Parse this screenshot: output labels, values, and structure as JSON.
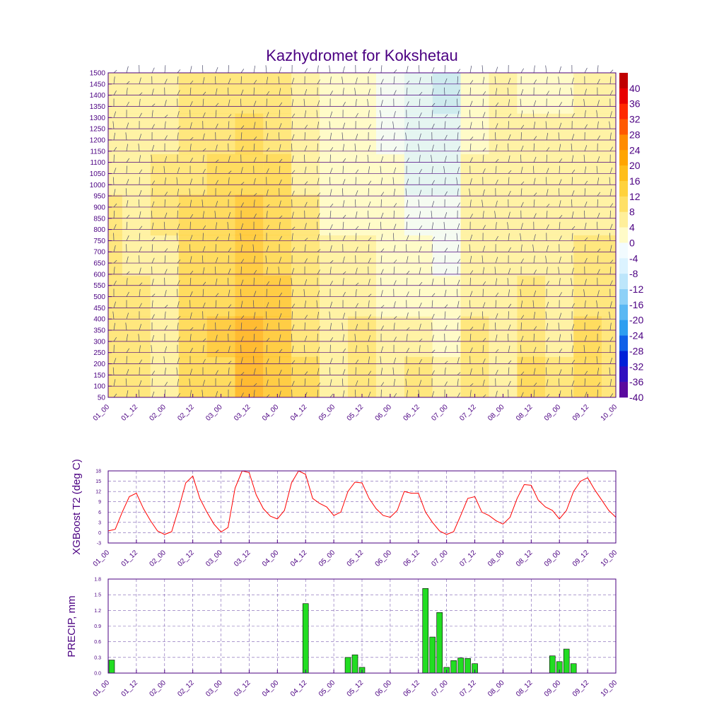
{
  "chart_data": [
    {
      "type": "heatmap",
      "title": "Kazhydromet for Kokshetau",
      "xlabel": "",
      "ylabel": "",
      "x_tick_labels": [
        "01_00",
        "01_12",
        "02_00",
        "02_12",
        "03_00",
        "03_12",
        "04_00",
        "04_12",
        "05_00",
        "05_12",
        "06_00",
        "06_12",
        "07_00",
        "07_12",
        "08_00",
        "08_12",
        "09_00",
        "09_12",
        "10_00"
      ],
      "y_tick_labels": [
        "1500",
        "1450",
        "1400",
        "1350",
        "1300",
        "1250",
        "1200",
        "1150",
        "1100",
        "1050",
        "1000",
        "950",
        "900",
        "850",
        "800",
        "750",
        "700",
        "650",
        "600",
        "550",
        "500",
        "450",
        "400",
        "350",
        "300",
        "250",
        "200",
        "150",
        "100",
        "50"
      ],
      "ylim": [
        50,
        1500
      ],
      "colorbar": {
        "labels": [
          "40",
          "36",
          "32",
          "28",
          "24",
          "20",
          "16",
          "12",
          "8",
          "4",
          "0",
          "-4",
          "-8",
          "-12",
          "-16",
          "-20",
          "-24",
          "-28",
          "-32",
          "-36",
          "-40"
        ],
        "colors": [
          "#c00000",
          "#e80000",
          "#ff2a00",
          "#ff5a00",
          "#ff8c00",
          "#ffa500",
          "#ffbe1a",
          "#ffd23c",
          "#ffe066",
          "#ffef9a",
          "#fffbc8",
          "#f2fbff",
          "#dcf3ff",
          "#bde6fb",
          "#8ed1f7",
          "#5ab8f3",
          "#2e9ef0",
          "#1060e8",
          "#0020d8",
          "#3010c0",
          "#5a0a9e"
        ]
      },
      "time_columns": [
        {
          "t": "01_00",
          "profile": [
            6,
            6,
            7,
            6,
            6,
            5,
            3,
            2
          ]
        },
        {
          "t": "01_12",
          "profile": [
            9,
            7,
            6,
            5,
            5,
            4,
            3,
            2
          ]
        },
        {
          "t": "02_00",
          "profile": [
            3,
            4,
            5,
            5,
            6,
            6,
            5,
            4
          ]
        },
        {
          "t": "02_12",
          "profile": [
            12,
            13,
            12,
            11,
            10,
            9,
            8,
            6
          ]
        },
        {
          "t": "03_00",
          "profile": [
            13,
            14,
            13,
            12,
            11,
            10,
            9,
            8
          ]
        },
        {
          "t": "03_12",
          "profile": [
            18,
            18,
            17,
            16,
            14,
            12,
            10,
            9
          ]
        },
        {
          "t": "04_00",
          "profile": [
            16,
            15,
            14,
            12,
            11,
            10,
            9,
            8
          ]
        },
        {
          "t": "04_12",
          "profile": [
            10,
            9,
            8,
            7,
            6,
            5,
            4,
            3
          ]
        },
        {
          "t": "05_00",
          "profile": [
            5,
            4,
            3,
            2,
            1,
            0,
            -1,
            -2
          ]
        },
        {
          "t": "05_12",
          "profile": [
            9,
            7,
            5,
            3,
            1,
            0,
            -1,
            -2
          ]
        },
        {
          "t": "06_00",
          "profile": [
            4,
            3,
            1,
            0,
            -1,
            -2,
            -3,
            -4
          ]
        },
        {
          "t": "06_12",
          "profile": [
            6,
            4,
            1,
            -2,
            -5,
            -7,
            -9,
            -10
          ]
        },
        {
          "t": "07_00",
          "profile": [
            2,
            0,
            -2,
            -4,
            -6,
            -8,
            -10,
            -12
          ]
        },
        {
          "t": "07_12",
          "profile": [
            7,
            6,
            5,
            4,
            3,
            2,
            1,
            0
          ]
        },
        {
          "t": "08_00",
          "profile": [
            5,
            5,
            4,
            4,
            3,
            3,
            2,
            2
          ]
        },
        {
          "t": "08_12",
          "profile": [
            10,
            9,
            7,
            5,
            4,
            3,
            2,
            1
          ]
        },
        {
          "t": "09_00",
          "profile": [
            6,
            5,
            4,
            3,
            3,
            2,
            2,
            1
          ]
        },
        {
          "t": "09_12",
          "profile": [
            11,
            10,
            8,
            6,
            5,
            4,
            4,
            3
          ]
        },
        {
          "t": "10_00",
          "profile": [
            9,
            8,
            7,
            6,
            5,
            4,
            4,
            3
          ]
        }
      ]
    },
    {
      "type": "line",
      "ylabel": "XGBoost T2 (deg C)",
      "x_tick_labels": [
        "01_00",
        "01_12",
        "02_00",
        "02_12",
        "03_00",
        "03_12",
        "04_00",
        "04_12",
        "05_00",
        "05_12",
        "06_00",
        "06_12",
        "07_00",
        "07_12",
        "08_00",
        "08_12",
        "09_00",
        "09_12",
        "10_00"
      ],
      "y_tick_labels": [
        "-3",
        "0",
        "3",
        "6",
        "9",
        "12",
        "15",
        "18"
      ],
      "ylim": [
        -3,
        18
      ],
      "series": [
        {
          "name": "T2",
          "color": "#ff0000",
          "values": [
            0.5,
            1.0,
            6.0,
            10.5,
            11.5,
            7.0,
            3.5,
            0.5,
            -0.5,
            0.3,
            7.0,
            14.5,
            16.5,
            10.0,
            6.0,
            2.5,
            0.2,
            1.5,
            13.0,
            18.0,
            17.5,
            11.0,
            7.0,
            4.8,
            4.0,
            6.5,
            14.5,
            18.0,
            17.0,
            10.0,
            8.5,
            7.5,
            5.0,
            6.0,
            12.0,
            14.7,
            14.5,
            10.0,
            7.0,
            5.0,
            4.5,
            6.5,
            12.0,
            11.5,
            11.5,
            6.0,
            3.0,
            0.5,
            -0.5,
            0.3,
            5.0,
            10.0,
            10.5,
            6.0,
            5.0,
            3.5,
            2.5,
            4.5,
            10.0,
            14.0,
            13.8,
            9.5,
            7.5,
            6.5,
            4.0,
            6.5,
            12.0,
            15.0,
            16.0,
            12.5,
            9.5,
            6.5,
            4.5
          ]
        }
      ]
    },
    {
      "type": "bar",
      "ylabel": "PRECIP, mm",
      "x_tick_labels": [
        "01_00",
        "01_12",
        "02_00",
        "02_12",
        "03_00",
        "03_12",
        "04_00",
        "04_12",
        "05_00",
        "05_12",
        "06_00",
        "06_12",
        "07_00",
        "07_12",
        "08_00",
        "08_12",
        "09_00",
        "09_12",
        "10_00"
      ],
      "y_tick_labels": [
        "0.0",
        "0.3",
        "0.6",
        "0.9",
        "1.2",
        "1.5",
        "1.8"
      ],
      "ylim": [
        0,
        1.8
      ],
      "bar_color": "#22dd22",
      "bars": [
        {
          "x": 0.5,
          "value": 0.25
        },
        {
          "x": 28,
          "value": 1.33
        },
        {
          "x": 34,
          "value": 0.3
        },
        {
          "x": 35,
          "value": 0.35
        },
        {
          "x": 36,
          "value": 0.11
        },
        {
          "x": 45,
          "value": 1.62
        },
        {
          "x": 46,
          "value": 0.69
        },
        {
          "x": 47,
          "value": 1.16
        },
        {
          "x": 48,
          "value": 0.11
        },
        {
          "x": 49,
          "value": 0.24
        },
        {
          "x": 50,
          "value": 0.29
        },
        {
          "x": 51,
          "value": 0.28
        },
        {
          "x": 52,
          "value": 0.18
        },
        {
          "x": 63,
          "value": 0.33
        },
        {
          "x": 64,
          "value": 0.22
        },
        {
          "x": 65,
          "value": 0.46
        },
        {
          "x": 66,
          "value": 0.18
        }
      ]
    }
  ]
}
